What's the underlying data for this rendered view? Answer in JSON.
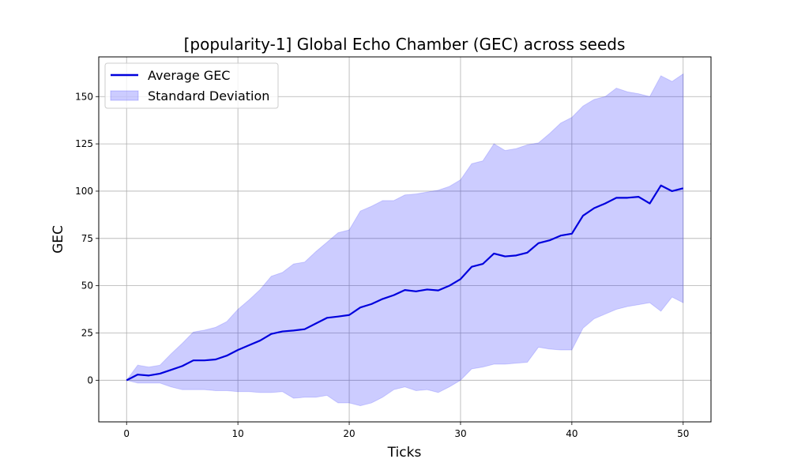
{
  "chart_data": {
    "type": "line",
    "title": "[popularity-1] Global Echo Chamber (GEC) across seeds",
    "xlabel": "Ticks",
    "ylabel": "GEC",
    "xlim": [
      -2.5,
      52.5
    ],
    "ylim": [
      -22,
      171
    ],
    "xticks": [
      0,
      10,
      20,
      30,
      40,
      50
    ],
    "yticks": [
      0,
      25,
      50,
      75,
      100,
      125,
      150
    ],
    "grid": true,
    "legend_position": "top-left",
    "x": [
      0,
      1,
      2,
      3,
      4,
      5,
      6,
      7,
      8,
      9,
      10,
      11,
      12,
      13,
      14,
      15,
      16,
      17,
      18,
      19,
      20,
      21,
      22,
      23,
      24,
      25,
      26,
      27,
      28,
      29,
      30,
      31,
      32,
      33,
      34,
      35,
      36,
      37,
      38,
      39,
      40,
      41,
      42,
      43,
      44,
      45,
      46,
      47,
      48,
      49,
      50
    ],
    "series": [
      {
        "name": "Average GEC",
        "kind": "line",
        "color": "#0000dd",
        "values": [
          0,
          3,
          2.5,
          3.5,
          5.5,
          7.5,
          10.5,
          10.5,
          11,
          13,
          16,
          18.5,
          21,
          24.5,
          25.8,
          26.3,
          27,
          30,
          33,
          33.7,
          34.5,
          38.5,
          40.3,
          43,
          45,
          47.7,
          47,
          48,
          47.5,
          50,
          53.5,
          60,
          61.5,
          67,
          65.5,
          66,
          67.5,
          72.5,
          74,
          76.5,
          77.5,
          87,
          91,
          93.5,
          96.5,
          96.5,
          97,
          93.5,
          103,
          100,
          101.5
        ]
      },
      {
        "name": "Standard Deviation",
        "kind": "band",
        "color": "#0000ff",
        "lower": [
          0,
          -1.5,
          -1.5,
          -1.5,
          -3.5,
          -5,
          -5,
          -5,
          -5.5,
          -5.5,
          -6,
          -6,
          -6.5,
          -6.5,
          -6,
          -9.5,
          -9,
          -9,
          -8,
          -12,
          -12,
          -13.5,
          -12,
          -9,
          -5,
          -3.5,
          -5.5,
          -5,
          -6.5,
          -3.5,
          0,
          6,
          7,
          8.5,
          8.5,
          9,
          9.5,
          17.5,
          16.5,
          16,
          16,
          27.5,
          32.5,
          35,
          37.5,
          39,
          40,
          41,
          36.5,
          44,
          41
        ],
        "upper": [
          0,
          8,
          7,
          8,
          14,
          19.5,
          25.5,
          26.5,
          28,
          31,
          37.5,
          42.5,
          48,
          55,
          57,
          61.5,
          62.5,
          68,
          73,
          78,
          79.5,
          89.5,
          92,
          95,
          95,
          98,
          98.5,
          99.5,
          100.5,
          102.5,
          106,
          114.5,
          116,
          125,
          121.5,
          122.5,
          124.5,
          125.5,
          130.5,
          136,
          139,
          145,
          148.5,
          150,
          154.5,
          152.5,
          151.5,
          150,
          161,
          158,
          162
        ]
      }
    ]
  }
}
